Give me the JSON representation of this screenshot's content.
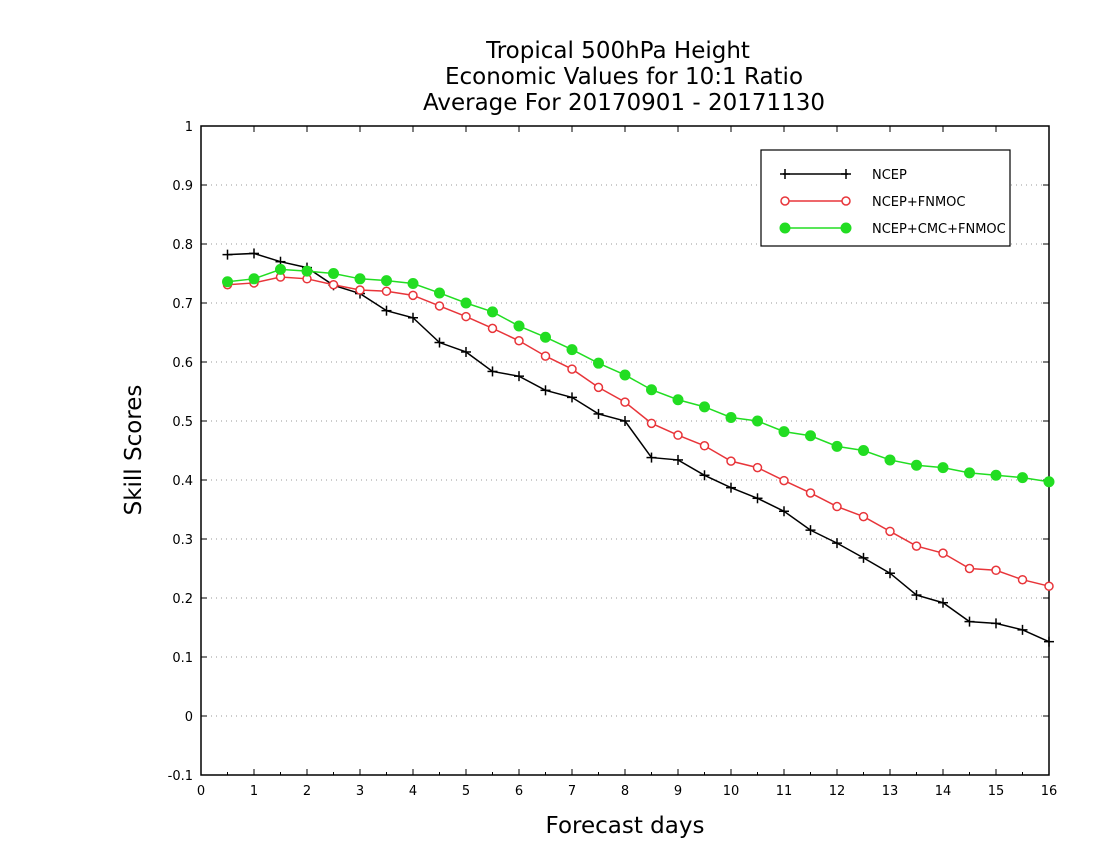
{
  "chart_data": {
    "type": "line",
    "title": [
      "Tropical 500hPa Height",
      "Economic Values for 10:1 Ratio",
      "Average For 20170901 - 20171130"
    ],
    "xlabel": "Forecast days",
    "ylabel": "Skill Scores",
    "xlim": [
      0,
      16
    ],
    "ylim": [
      -0.1,
      1
    ],
    "xticks": [
      0,
      1,
      2,
      3,
      4,
      5,
      6,
      7,
      8,
      9,
      10,
      11,
      12,
      13,
      14,
      15,
      16
    ],
    "xtick_labels": [
      "0",
      "1",
      "2",
      "3",
      "4",
      "5",
      "6",
      "7",
      "8",
      "9",
      "10",
      "11",
      "12",
      "13",
      "14",
      "15",
      "16"
    ],
    "yticks": [
      -0.1,
      0,
      0.1,
      0.2,
      0.3,
      0.4,
      0.5,
      0.6,
      0.7,
      0.8,
      0.9,
      1
    ],
    "ytick_labels": [
      "-0.1",
      "0",
      "0.1",
      "0.2",
      "0.3",
      "0.4",
      "0.5",
      "0.6",
      "0.7",
      "0.8",
      "0.9",
      "1"
    ],
    "grid": "horizontal dotted",
    "legend_position": "top-right",
    "x": [
      0.5,
      1,
      1.5,
      2,
      2.5,
      3,
      3.5,
      4,
      4.5,
      5,
      5.5,
      6,
      6.5,
      7,
      7.5,
      8,
      8.5,
      9,
      9.5,
      10,
      10.5,
      11,
      11.5,
      12,
      12.5,
      13,
      13.5,
      14,
      14.5,
      15,
      15.5,
      16
    ],
    "series": [
      {
        "name": "NCEP",
        "color": "#000000",
        "marker": "plus",
        "values": [
          0.782,
          0.784,
          0.77,
          0.76,
          0.73,
          0.716,
          0.687,
          0.675,
          0.633,
          0.617,
          0.584,
          0.576,
          0.552,
          0.54,
          0.512,
          0.5,
          0.438,
          0.434,
          0.408,
          0.387,
          0.369,
          0.347,
          0.315,
          0.293,
          0.268,
          0.242,
          0.205,
          0.192,
          0.16,
          0.157,
          0.146,
          0.126
        ]
      },
      {
        "name": "NCEP+FNMOC",
        "color": "#e8353a",
        "marker": "open-circle",
        "values": [
          0.731,
          0.734,
          0.744,
          0.741,
          0.731,
          0.722,
          0.72,
          0.713,
          0.695,
          0.677,
          0.657,
          0.636,
          0.61,
          0.588,
          0.557,
          0.532,
          0.496,
          0.476,
          0.458,
          0.432,
          0.421,
          0.399,
          0.378,
          0.355,
          0.338,
          0.313,
          0.288,
          0.276,
          0.25,
          0.247,
          0.231,
          0.22
        ]
      },
      {
        "name": "NCEP+CMC+FNMOC",
        "color": "#22dd22",
        "marker": "filled-circle",
        "values": [
          0.736,
          0.741,
          0.757,
          0.754,
          0.75,
          0.741,
          0.738,
          0.733,
          0.717,
          0.7,
          0.685,
          0.661,
          0.642,
          0.621,
          0.598,
          0.578,
          0.553,
          0.536,
          0.524,
          0.506,
          0.5,
          0.482,
          0.475,
          0.457,
          0.45,
          0.434,
          0.425,
          0.421,
          0.412,
          0.408,
          0.404,
          0.397
        ]
      }
    ]
  }
}
